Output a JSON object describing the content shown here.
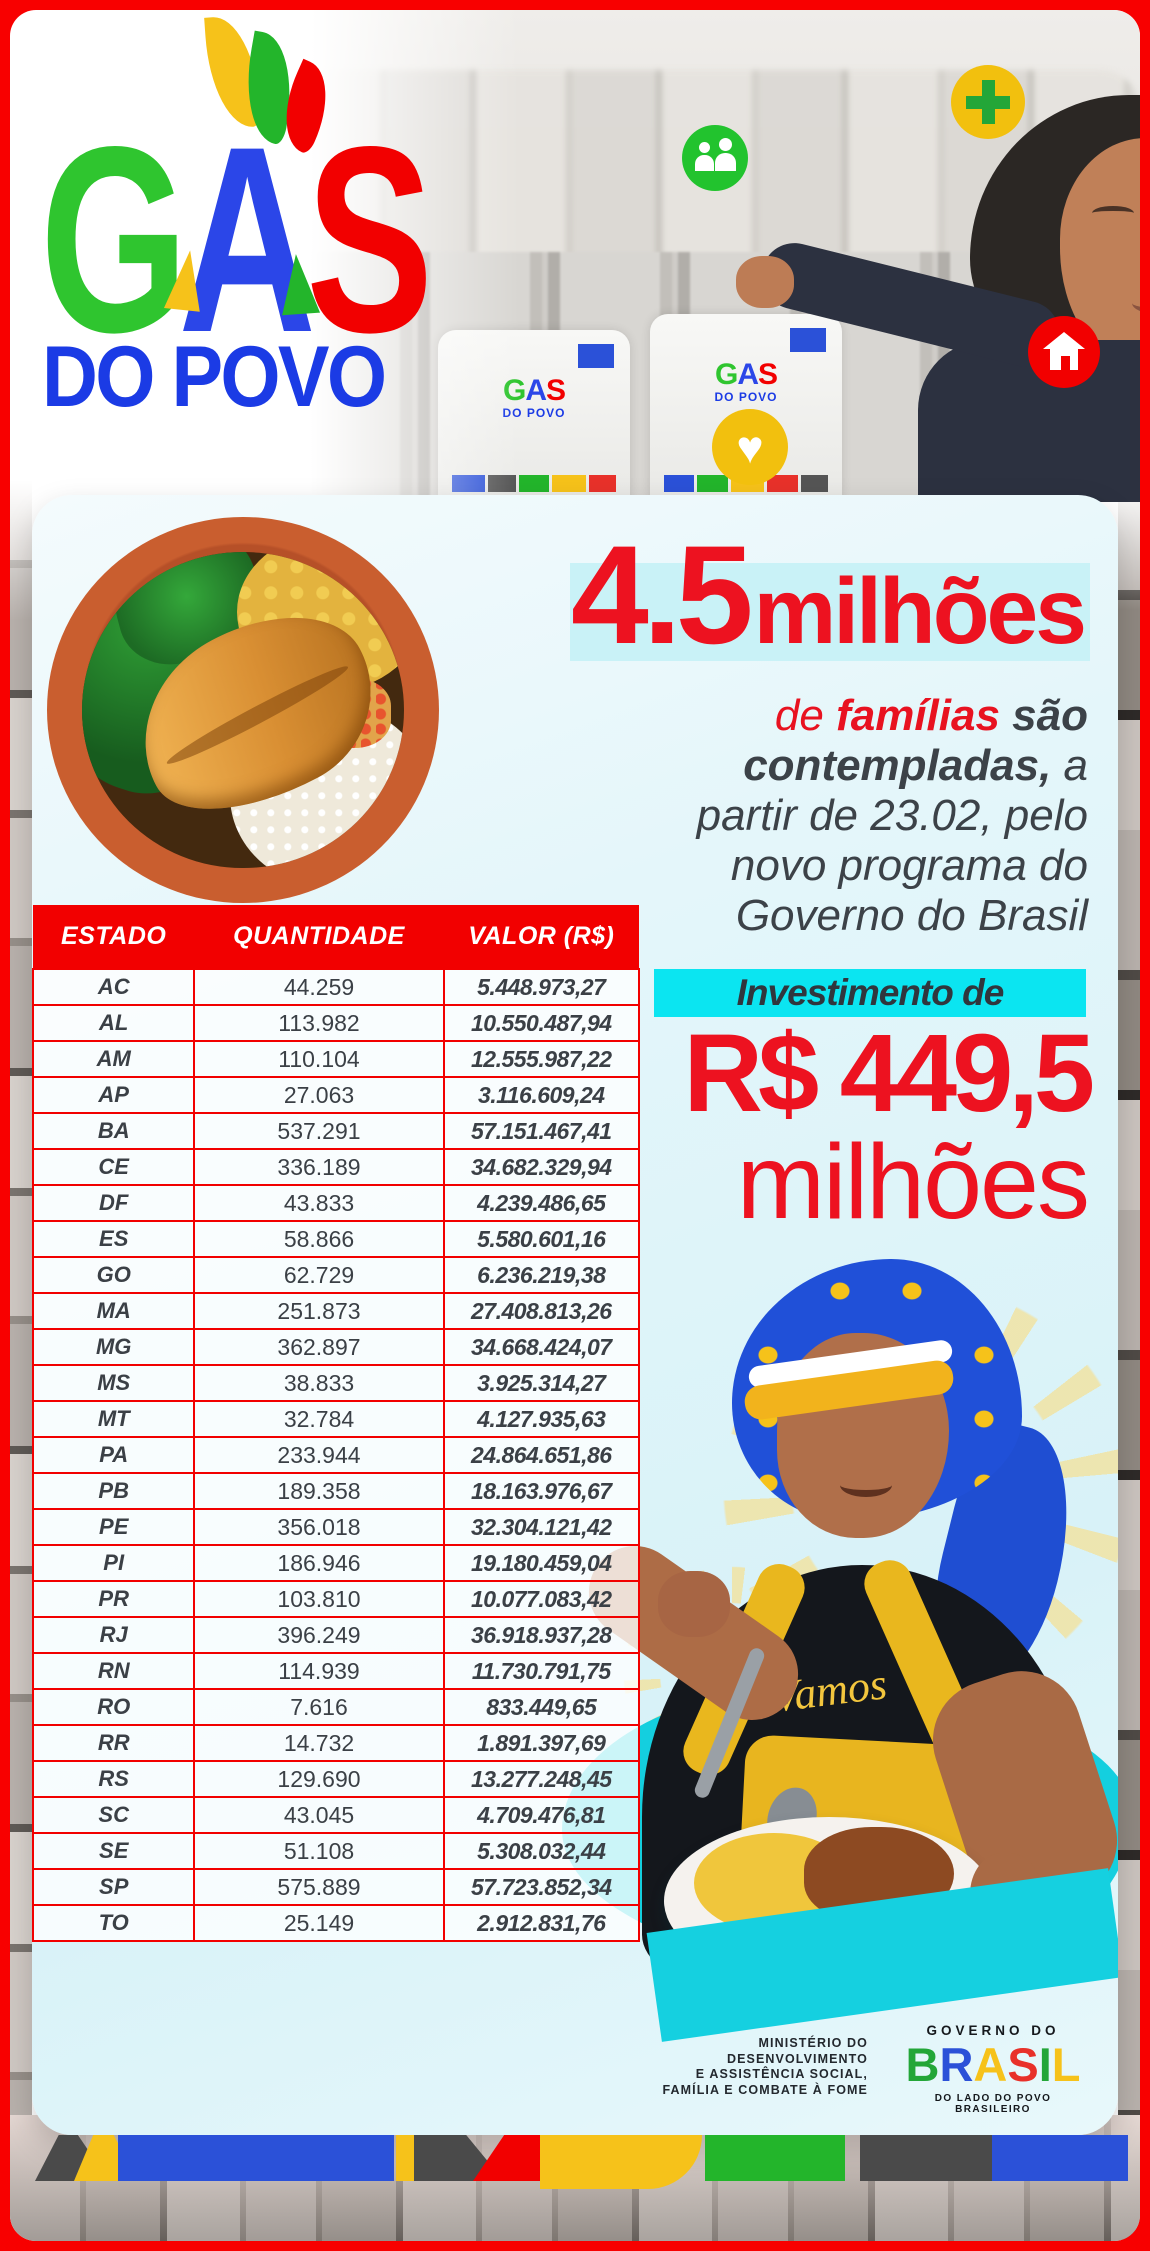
{
  "logo": {
    "l1": "G",
    "l2": "A",
    "l3": "S",
    "line2": "DO POVO"
  },
  "icons": {
    "heart": "♥"
  },
  "headline": {
    "number": "4.5",
    "unit": "milhões"
  },
  "subtitle": {
    "l1a": "de ",
    "l1b": "famílias",
    "l1c": " são",
    "l2a": "contempladas,",
    "l2b": " a",
    "l3": "partir de 23.02, pelo",
    "l4": "novo programa do",
    "l5": "Governo do Brasil"
  },
  "invest": {
    "label": "Investimento de",
    "amount": "R$ 449,5",
    "unit": "milhões"
  },
  "table": {
    "headers": [
      "ESTADO",
      "QUANTIDADE",
      "VALOR (R$)"
    ],
    "rows": [
      [
        "AC",
        "44.259",
        "5.448.973,27"
      ],
      [
        "AL",
        "113.982",
        "10.550.487,94"
      ],
      [
        "AM",
        "110.104",
        "12.555.987,22"
      ],
      [
        "AP",
        "27.063",
        "3.116.609,24"
      ],
      [
        "BA",
        "537.291",
        "57.151.467,41"
      ],
      [
        "CE",
        "336.189",
        "34.682.329,94"
      ],
      [
        "DF",
        "43.833",
        "4.239.486,65"
      ],
      [
        "ES",
        "58.866",
        "5.580.601,16"
      ],
      [
        "GO",
        "62.729",
        "6.236.219,38"
      ],
      [
        "MA",
        "251.873",
        "27.408.813,26"
      ],
      [
        "MG",
        "362.897",
        "34.668.424,07"
      ],
      [
        "MS",
        "38.833",
        "3.925.314,27"
      ],
      [
        "MT",
        "32.784",
        "4.127.935,63"
      ],
      [
        "PA",
        "233.944",
        "24.864.651,86"
      ],
      [
        "PB",
        "189.358",
        "18.163.976,67"
      ],
      [
        "PE",
        "356.018",
        "32.304.121,42"
      ],
      [
        "PI",
        "186.946",
        "19.180.459,04"
      ],
      [
        "PR",
        "103.810",
        "10.077.083,42"
      ],
      [
        "RJ",
        "396.249",
        "36.918.937,28"
      ],
      [
        "RN",
        "114.939",
        "11.730.791,75"
      ],
      [
        "RO",
        "7.616",
        "833.449,65"
      ],
      [
        "RR",
        "14.732",
        "1.891.397,69"
      ],
      [
        "RS",
        "129.690",
        "13.277.248,45"
      ],
      [
        "SC",
        "43.045",
        "4.709.476,81"
      ],
      [
        "SE",
        "51.108",
        "5.308.032,44"
      ],
      [
        "SP",
        "575.889",
        "57.723.852,34"
      ],
      [
        "TO",
        "25.149",
        "2.912.831,76"
      ]
    ]
  },
  "footer": {
    "ministry_lines": [
      "MINISTÉRIO DO",
      "DESENVOLVIMENTO",
      "E ASSISTÊNCIA SOCIAL,",
      "FAMÍLIA E COMBATE À FOME"
    ],
    "governo": "GOVERNO DO",
    "brand": "BRASIL",
    "brand_colors": [
      "#23a638",
      "#2b51d8",
      "#f6c21a",
      "#e8312a",
      "#23a638",
      "#f6c21a"
    ],
    "tagline": "DO LADO DO POVO BRASILEIRO"
  },
  "images": {
    "cook_shirt_text": "Vamos"
  },
  "colors": {
    "frame_red": "#f80000",
    "table_red": "#f20000",
    "text_red": "#ed1220",
    "cyan_band": "#0be5f1",
    "cyan_highlight": "#c9f2f7",
    "dark_text": "#3b4046",
    "logo_green": "#2fc52f",
    "logo_blue": "#2b46e8",
    "logo_yellow": "#f6c21a",
    "dopovo_blue": "#1b3be5",
    "splash_teal": "#14cfdf"
  }
}
